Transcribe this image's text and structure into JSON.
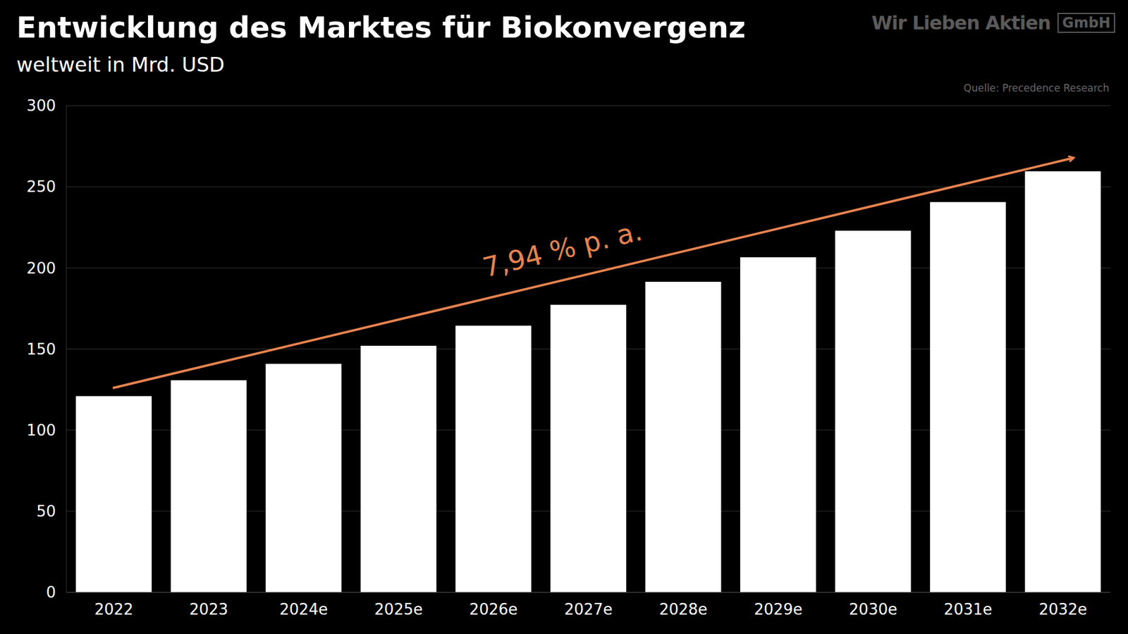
{
  "chart_data": {
    "type": "bar",
    "title": "Entwicklung des Marktes für Biokonvergenz",
    "subtitle": "weltweit in Mrd. USD",
    "logo": "Wir Lieben Aktien",
    "logo_box": "GmbH",
    "source": "Quelle: Precedence Research",
    "annotation": "7,94 % p. a.",
    "categories": [
      "2022",
      "2023",
      "2024e",
      "2025e",
      "2026e",
      "2027e",
      "2028e",
      "2029e",
      "2030e",
      "2031e",
      "2032e"
    ],
    "values": [
      121,
      130.7,
      140.9,
      152,
      164.4,
      177.2,
      191.4,
      206.5,
      222.9,
      240.6,
      259.6
    ],
    "color": "#ffffff",
    "ylim": [
      0,
      300
    ],
    "yticks": [
      0,
      50,
      100,
      150,
      200,
      250,
      300
    ],
    "grid": true
  }
}
